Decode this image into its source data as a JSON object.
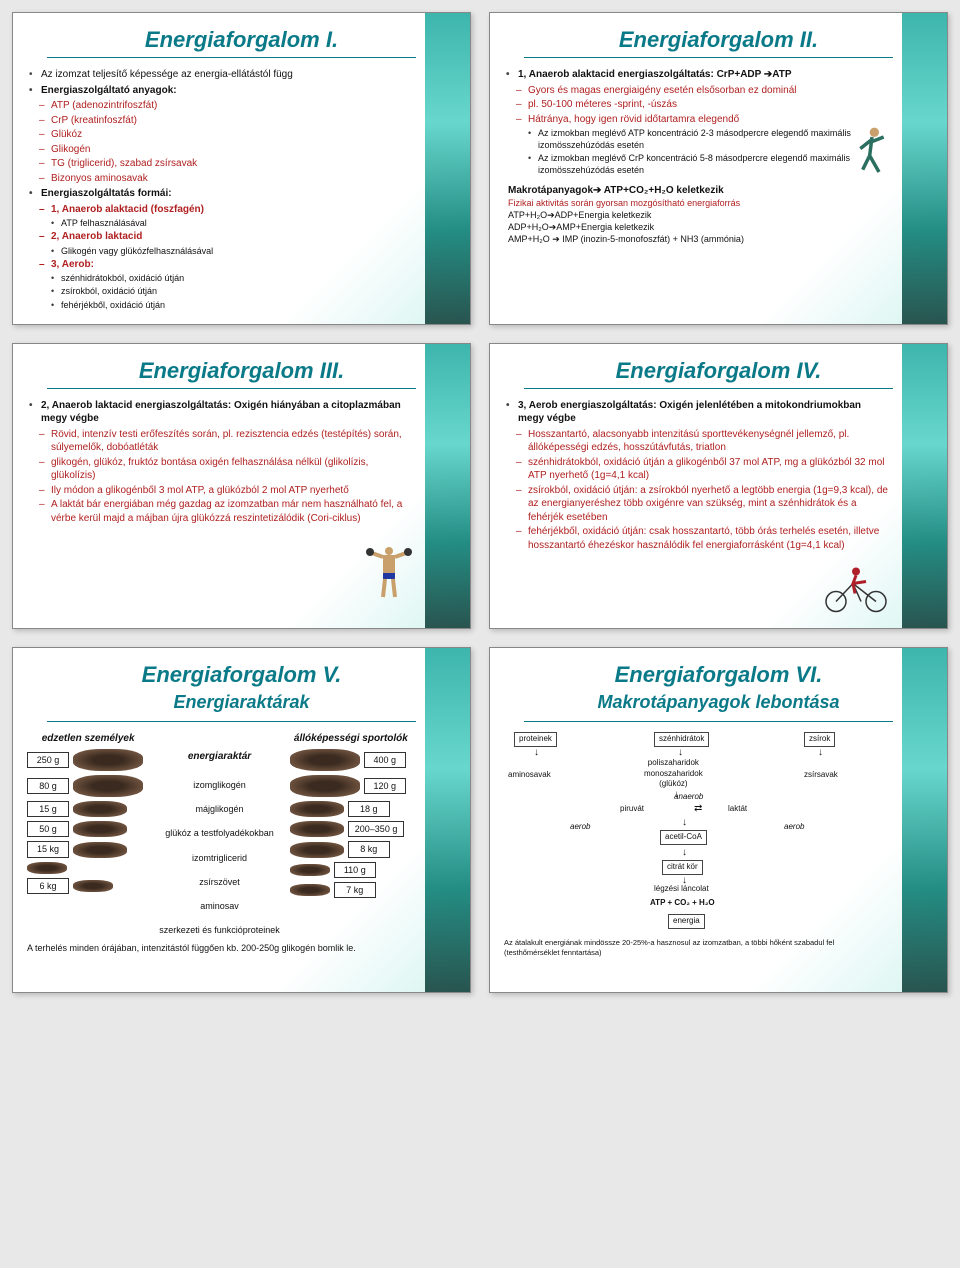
{
  "s1": {
    "title": "Energiaforgalom I.",
    "p1": "Az izomzat teljesítő képessége az energia-ellátástól függ",
    "p2": "Energiaszolgáltató anyagok:",
    "a": [
      "ATP (adenozintrifoszfát)",
      "CrP (kreatinfoszfát)",
      "Glükóz",
      "Glikogén",
      "TG (triglicerid), szabad zsírsavak",
      "Bizonyos aminosavak"
    ],
    "p3": "Energiaszolgáltatás formái:",
    "f1": "1, Anaerob alaktacid (foszfagén)",
    "f1a": "ATP felhasználásával",
    "f2": "2, Anaerob laktacid",
    "f2a": "Glikogén vagy glükózfelhasználásával",
    "f3": "3, Aerob:",
    "f3a": "szénhidrátokból, oxidáció útján",
    "f3b": "zsírokból, oxidáció útján",
    "f3c": "fehérjékből, oxidáció útján"
  },
  "s2": {
    "title": "Energiaforgalom II.",
    "h": "1, Anaerob alaktacid energiaszolgáltatás: CrP+ADP ➔ATP",
    "l1": "Gyors és magas energiaigény esetén elsősorban ez dominál",
    "l2": "pl. 50-100 méteres -sprint, -úszás",
    "l3": "Hátránya, hogy igen rövid időtartamra elegendő",
    "l3a": "Az izmokban meglévő ATP koncentráció 2-3 másodpercre elegendő maximális izomösszehúzódás esetén",
    "l3b": "Az izmokban meglévő CrP koncentráció 5-8 másodpercre elegendő maximális izomösszehúzódás esetén",
    "mk": "Makrotápanyagok➔ ATP+CO₂+H₂O keletkezik",
    "mk1": "Fizikai aktivitás során gyorsan mozgósítható energiaforrás",
    "mk2": "ATP+H₂O➔ADP+Energia keletkezik",
    "mk3": "ADP+H₂O➔AMP+Energia keletkezik",
    "mk4": "AMP+H₂O ➔ IMP (inozin-5-monofoszfát) + NH3 (ammónia)"
  },
  "s3": {
    "title": "Energiaforgalom III.",
    "h": "2, Anaerob laktacid energiaszolgáltatás: Oxigén hiányában a citoplazmában megy végbe",
    "l1": "Rövid, intenzív testi erőfeszítés során, pl. rezisztencia edzés (testépítés) során, súlyemelők, dobóatléták",
    "l2": "glikogén, glükóz, fruktóz bontása oxigén felhasználása nélkül (glikolízis, glükolízis)",
    "l3": "Ily módon a glikogénből 3 mol ATP, a glükózból 2 mol ATP nyerhető",
    "l4": "A laktát bár energiában még gazdag az izomzatban már nem használható fel, a vérbe kerül majd a májban újra glükózzá reszintetizálódik (Cori-ciklus)"
  },
  "s4": {
    "title": "Energiaforgalom IV.",
    "h": "3, Aerob energiaszolgáltatás: Oxigén jelenlétében a mitokondriumokban megy végbe",
    "l1": "Hosszantartó, alacsonyabb intenzitású sporttevékenységnél jellemző, pl. állóképességi edzés, hosszútávfutás, triatlon",
    "l2": "szénhidrátokból, oxidáció útján a glikogénből 37 mol ATP, mg a glükózból 32 mol ATP nyerhető (1g=4,1 kcal)",
    "l3": "zsírokból, oxidáció útján: a zsírokból nyerhető a legtöbb energia (1g=9,3 kcal), de az energianyeréshez több oxigénre van szükség, mint a szénhidrátok és a fehérjék esetében",
    "l4": "fehérjékből, oxidáció útján: csak hosszantartó, több órás terhelés esetén, illetve hosszantartó éhezéskor használódik fel energiaforrásként (1g=4,1 kcal)"
  },
  "s5": {
    "title": "Energiaforgalom V.",
    "sub": "Energiaraktárak",
    "col_l": "edzetlen személyek",
    "col_m": "energiaraktár",
    "col_r": "állóképességi sportolók",
    "rows": [
      {
        "l": "250 g",
        "m": "izomglikogén",
        "r": "400 g"
      },
      {
        "l": "80 g",
        "m": "májglikogén",
        "r": "120 g"
      },
      {
        "l": "15 g",
        "m": "glükóz a testfolyadékokban",
        "r": "18 g"
      },
      {
        "l": "50 g",
        "m": "izomtriglicerid",
        "r": "200–350 g"
      },
      {
        "l": "15 kg",
        "m": "zsírszövet",
        "r": "8 kg"
      },
      {
        "l": "",
        "m": "aminosav",
        "r": "110 g"
      },
      {
        "l": "6 kg",
        "m": "szerkezeti és funkcióproteinek",
        "r": "7 kg"
      }
    ],
    "cap": "A terhelés minden órájában, intenzitástól függően kb. 200-250g glikogén bomlik le."
  },
  "s6": {
    "title": "Energiaforgalom VI.",
    "sub": "Makrotápanyagok lebontása",
    "n": {
      "proteinek": "proteinek",
      "szenhidratok": "szénhidrátok",
      "zsirok": "zsírok",
      "aminosavak": "aminosavak",
      "poli": "poliszaharidok\nmonoszaharidok\n(glükóz)",
      "zsirsavak": "zsírsavak",
      "piruvat": "piruvát",
      "laktat": "laktát",
      "anaerob": "anaerob",
      "aerob": "aerob",
      "acetil": "acetil-CoA",
      "citrat": "citrát kör",
      "legzesi": "légzési láncolat",
      "atp": "ATP + CO₂ + H₂O",
      "energia": "energia"
    },
    "cap": "Az átalakult energiának mindössze 20-25%-a hasznosul az izomzatban, a többi hőként szabadul fel (testhőmérséklet fenntartása)"
  }
}
